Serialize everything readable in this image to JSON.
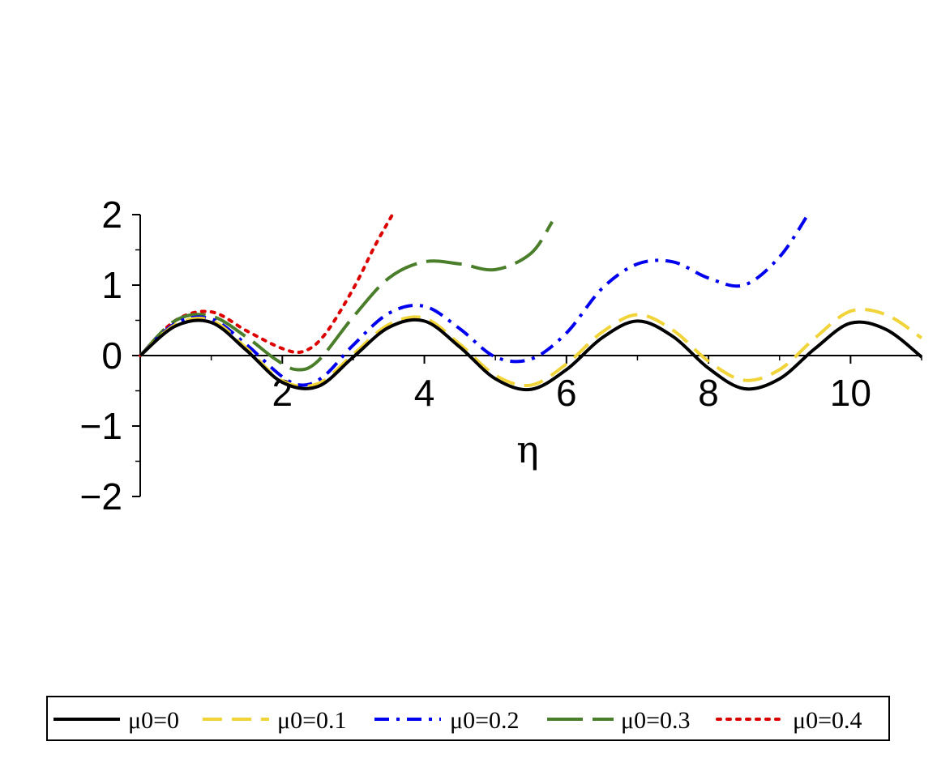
{
  "chart_data": {
    "type": "line",
    "xlabel": "η",
    "ylabel": "",
    "xlim": [
      0,
      11
    ],
    "ylim": [
      -2,
      2
    ],
    "x_ticks": [
      2,
      4,
      6,
      8,
      10
    ],
    "y_ticks": [
      -2,
      -1,
      0,
      1,
      2
    ],
    "grid": false,
    "legend_position": "bottom",
    "series": [
      {
        "name": "μ0=0",
        "color": "#000000",
        "style": "solid",
        "x": [
          0,
          0.5,
          1.0,
          1.5,
          2.0,
          2.5,
          3.0,
          3.5,
          4.0,
          4.5,
          5.0,
          5.5,
          6.0,
          6.5,
          7.0,
          7.5,
          8.0,
          8.5,
          9.0,
          9.5,
          10.0,
          10.5,
          11.0
        ],
        "y": [
          0,
          0.42,
          0.47,
          0.07,
          -0.38,
          -0.44,
          -0.02,
          0.4,
          0.49,
          0.12,
          -0.33,
          -0.48,
          -0.2,
          0.25,
          0.49,
          0.27,
          -0.18,
          -0.47,
          -0.33,
          0.1,
          0.46,
          0.37,
          -0.02
        ]
      },
      {
        "name": "μ0=0.1",
        "color": "#f0d43a",
        "style": "dash",
        "x": [
          0,
          0.5,
          1.0,
          1.5,
          2.0,
          2.5,
          3.0,
          3.5,
          4.0,
          4.5,
          5.0,
          5.5,
          6.0,
          6.5,
          7.0,
          7.5,
          8.0,
          8.5,
          9.0,
          9.5,
          10.0,
          10.5,
          11.0
        ],
        "y": [
          0,
          0.44,
          0.5,
          0.1,
          -0.36,
          -0.4,
          0.02,
          0.44,
          0.53,
          0.16,
          -0.28,
          -0.42,
          -0.12,
          0.33,
          0.58,
          0.36,
          -0.08,
          -0.35,
          -0.2,
          0.25,
          0.63,
          0.58,
          0.25
        ]
      },
      {
        "name": "μ0=0.2",
        "color": "#0000ee",
        "style": "dashdot",
        "x": [
          0,
          0.5,
          1.0,
          1.5,
          2.0,
          2.3,
          2.6,
          3.0,
          3.5,
          4.0,
          4.5,
          5.0,
          5.5,
          6.0,
          6.5,
          7.0,
          7.5,
          8.0,
          8.5,
          9.0,
          9.4
        ],
        "y": [
          0,
          0.46,
          0.52,
          0.15,
          -0.3,
          -0.42,
          -0.28,
          0.15,
          0.6,
          0.7,
          0.38,
          -0.02,
          -0.05,
          0.32,
          0.95,
          1.3,
          1.33,
          1.1,
          1.0,
          1.4,
          2.0
        ]
      },
      {
        "name": "μ0=0.3",
        "color": "#4a7e2a",
        "style": "longdash",
        "x": [
          0,
          0.5,
          1.0,
          1.5,
          1.9,
          2.2,
          2.5,
          3.0,
          3.5,
          4.0,
          4.5,
          5.0,
          5.5,
          5.8
        ],
        "y": [
          0,
          0.5,
          0.56,
          0.26,
          -0.05,
          -0.2,
          -0.08,
          0.55,
          1.1,
          1.33,
          1.3,
          1.22,
          1.45,
          1.9
        ]
      },
      {
        "name": "μ0=0.4",
        "color": "#dd0000",
        "style": "dot",
        "x": [
          0,
          0.5,
          1.0,
          1.5,
          2.0,
          2.3,
          2.6,
          3.0,
          3.3,
          3.55
        ],
        "y": [
          0,
          0.5,
          0.62,
          0.35,
          0.1,
          0.06,
          0.3,
          0.95,
          1.55,
          2.0
        ]
      }
    ]
  }
}
